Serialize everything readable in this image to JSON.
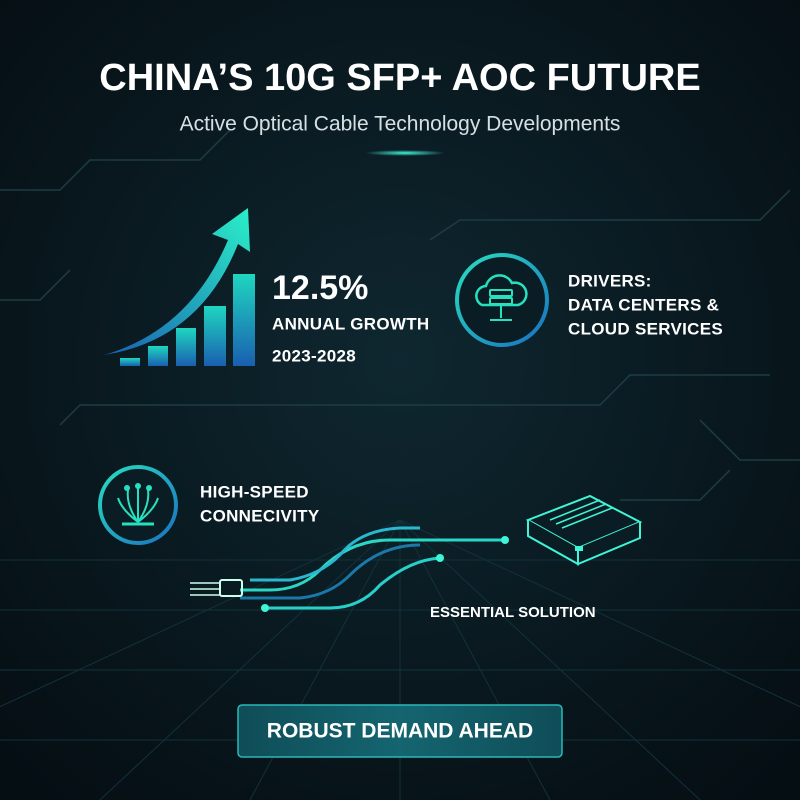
{
  "header": {
    "title": "CHINA’S 10G SFP+ AOC FUTURE",
    "subtitle": "Active Optical Cable Technology Developments"
  },
  "growth": {
    "value": "12.5%",
    "label": "ANNUAL GROWTH",
    "period": "2023-2028"
  },
  "drivers": {
    "lines": [
      "DRIVERS:",
      "DATA CENTERS &",
      "CLOUD SERVICES"
    ]
  },
  "connectivity": {
    "lines": [
      "HIGH-SPEED",
      "CONNECIVITY"
    ]
  },
  "solution": {
    "label": "ESSENTIAL SOLUTION"
  },
  "cta": {
    "label": "ROBUST DEMAND AHEAD"
  }
}
